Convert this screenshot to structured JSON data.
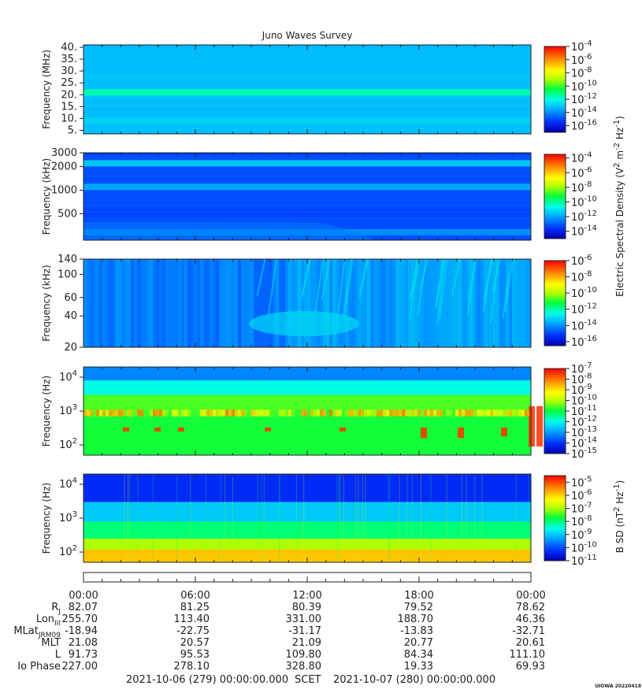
{
  "title": "Juno Waves Survey",
  "credit": "UIOWA 20220418",
  "time_axis": {
    "ticks": [
      "00:00",
      "06:00",
      "12:00",
      "18:00",
      "00:00"
    ],
    "start": "2021-10-06 (279) 00:00:00.000",
    "scet_label": "SCET",
    "end": "2021-10-07 (280) 00:00:00.000"
  },
  "colorbar_labels": {
    "electric": "Electric Spectral Density (V",
    "electric_sup1": "2",
    "electric_mid": " m",
    "electric_sup2": "-2",
    "electric_mid2": " Hz",
    "electric_sup3": "-1",
    "electric_end": ")",
    "magnetic": "B SD (nT",
    "magnetic_sup1": "2",
    "magnetic_mid": " Hz",
    "magnetic_sup2": "-1",
    "magnetic_end": ")"
  },
  "chart_data": [
    {
      "type": "heatmap",
      "name": "panel-1",
      "ylabel": "Frequency (MHz)",
      "yticks": [
        "40.",
        "35.",
        "30.",
        "25.",
        "20.",
        "15.",
        "10.",
        "5."
      ],
      "yscale": "linear",
      "ylim": [
        3.5,
        41
      ],
      "colorbar": {
        "base": "10",
        "exps": [
          "-4",
          "-6",
          "-8",
          "-10",
          "-12",
          "-14",
          "-16"
        ],
        "range": [
          -17,
          -4
        ]
      },
      "bands": [
        {
          "y": 21,
          "value": -11.5
        },
        {
          "y": 9,
          "value": -12.8
        }
      ],
      "background": -13.2
    },
    {
      "type": "heatmap",
      "name": "panel-2",
      "ylabel": "Frequency (kHz)",
      "yticks": [
        "3000",
        "2000",
        "1000",
        "500"
      ],
      "yscale": "log",
      "ylim": [
        230,
        3000
      ],
      "colorbar": {
        "base": "10",
        "exps": [
          "-4",
          "-6",
          "-8",
          "-10",
          "-12",
          "-14"
        ],
        "range": [
          -15,
          -3.5
        ]
      },
      "bands": [
        {
          "y": 2200,
          "value": -11.3
        },
        {
          "y": 1100,
          "value": -11.8
        },
        {
          "y": 290,
          "value": -12.2
        }
      ],
      "background": -13.2
    },
    {
      "type": "heatmap",
      "name": "panel-3",
      "ylabel": "Frequency (kHz)",
      "yticks": [
        "140",
        "100",
        "60",
        "40",
        "20"
      ],
      "yscale": "log",
      "ylim": [
        20,
        140
      ],
      "colorbar": {
        "base": "10",
        "exps": [
          "-6",
          "-8",
          "-10",
          "-12",
          "-14",
          "-16"
        ],
        "range": [
          -16.5,
          -6
        ]
      },
      "background": -14.3
    },
    {
      "type": "heatmap",
      "name": "panel-4",
      "ylabel": "Frequency (Hz)",
      "yticks": [
        "10",
        "10",
        "10"
      ],
      "ytick_exps": [
        "4",
        "3",
        "2"
      ],
      "yscale": "log",
      "ylim": [
        50,
        20000
      ],
      "colorbar": {
        "base": "10",
        "exps": [
          "-7",
          "-8",
          "-9",
          "-10",
          "-11",
          "-12",
          "-13",
          "-14",
          "-15"
        ],
        "range": [
          -15,
          -7
        ]
      },
      "background": -11
    },
    {
      "type": "heatmap",
      "name": "panel-5",
      "ylabel": "Frequency (Hz)",
      "yticks": [
        "10",
        "10",
        "10"
      ],
      "ytick_exps": [
        "4",
        "3",
        "2"
      ],
      "yscale": "log",
      "ylim": [
        50,
        20000
      ],
      "colorbar": {
        "base": "10",
        "exps": [
          "-5",
          "-6",
          "-7",
          "-8",
          "-9",
          "-10",
          "-11"
        ],
        "range": [
          -11,
          -4.5
        ]
      },
      "background": -9
    }
  ],
  "ephemeris": [
    {
      "label": "R",
      "sub": "J",
      "values": [
        "82.07",
        "81.25",
        "80.39",
        "79.52",
        "78.62"
      ]
    },
    {
      "label": "Lon",
      "sub": "III",
      "values": [
        "255.70",
        "113.40",
        "331.00",
        "188.70",
        "46.36"
      ]
    },
    {
      "label": "MLat",
      "sub": "JRM09",
      "values": [
        "-18.94",
        "-22.75",
        "-31.17",
        "-13.83",
        "-32.71"
      ]
    },
    {
      "label": "MLT",
      "sub": "",
      "values": [
        "21.08",
        "20.57",
        "21.09",
        "20.77",
        "20.61"
      ]
    },
    {
      "label": "L",
      "sub": "",
      "values": [
        "91.73",
        "95.53",
        "109.80",
        "84.34",
        "111.10"
      ]
    },
    {
      "label": "Io Phase",
      "sub": "",
      "values": [
        "227.00",
        "278.10",
        "328.80",
        "19.33",
        "69.93"
      ]
    }
  ]
}
